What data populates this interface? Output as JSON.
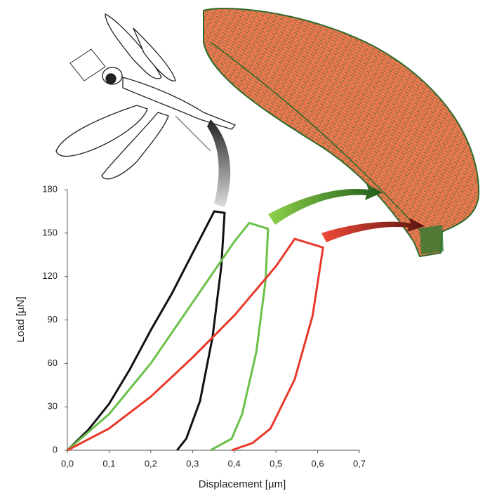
{
  "chart_data": {
    "type": "line",
    "x_label": "Displacement [µm]",
    "y_label": "Load [µN]",
    "xlim": [
      0,
      0.7
    ],
    "ylim": [
      0,
      180
    ],
    "xticks": [
      {
        "value": 0,
        "label": "0,0"
      },
      {
        "value": 0.1,
        "label": "0,1"
      },
      {
        "value": 0.2,
        "label": "0,2"
      },
      {
        "value": 0.3,
        "label": "0,3"
      },
      {
        "value": 0.4,
        "label": "0,4"
      },
      {
        "value": 0.5,
        "label": "0,5"
      },
      {
        "value": 0.6,
        "label": "0,6"
      },
      {
        "value": 0.7,
        "label": "0,7"
      }
    ],
    "yticks": [
      0,
      30,
      60,
      90,
      120,
      150,
      180
    ],
    "series": [
      {
        "color": "#111111",
        "x": [
          0,
          0.05,
          0.1,
          0.15,
          0.2,
          0.25,
          0.3,
          0.352,
          0.377,
          0.369,
          0.348,
          0.318,
          0.285,
          0.263
        ],
        "values": [
          0,
          14,
          32,
          56,
          83,
          108,
          136,
          165,
          164,
          127,
          78,
          34,
          8,
          0
        ]
      },
      {
        "color": "#6cc04a",
        "x": [
          0,
          0.1,
          0.2,
          0.3,
          0.4,
          0.436,
          0.481,
          0.475,
          0.453,
          0.419,
          0.394,
          0.343
        ],
        "values": [
          0,
          25,
          60,
          102,
          144,
          157,
          153,
          117,
          68,
          25,
          8,
          0
        ]
      },
      {
        "color": "#e8392b",
        "x": [
          0,
          0.1,
          0.2,
          0.3,
          0.4,
          0.5,
          0.545,
          0.613,
          0.588,
          0.545,
          0.487,
          0.444,
          0.394
        ],
        "values": [
          0,
          15,
          37,
          64,
          93,
          127,
          146,
          140,
          93,
          49,
          15,
          5,
          0
        ]
      }
    ]
  }
}
